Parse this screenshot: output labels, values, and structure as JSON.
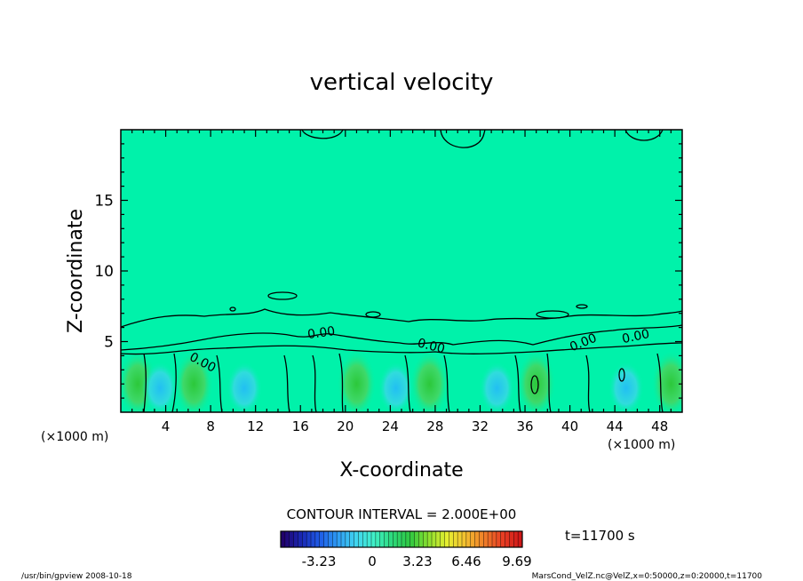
{
  "chart_data": {
    "type": "heatmap",
    "title": "vertical velocity",
    "xlabel": "X-coordinate",
    "ylabel": "Z-coordinate",
    "x_unit_left": "(×1000 m)",
    "x_unit_right": "(×1000 m)",
    "xlim": [
      0,
      50
    ],
    "ylim": [
      0,
      20
    ],
    "x_ticks": [
      "4",
      "8",
      "12",
      "16",
      "20",
      "24",
      "28",
      "32",
      "36",
      "40",
      "44",
      "48"
    ],
    "y_ticks": [
      "5",
      "10",
      "15"
    ],
    "contour_labels": [
      "0.00",
      "0.00",
      "0.00",
      "0.00",
      "0.00"
    ],
    "contour_interval_text": "CONTOUR INTERVAL = 2.000E+00",
    "time_text": "t=11700 s",
    "colorbar": {
      "ticks": [
        "-3.23",
        "0",
        "3.23",
        "6.46",
        "9.69"
      ],
      "colors": [
        "#20006a",
        "#1a28b4",
        "#1e5ae6",
        "#2e9cf4",
        "#40d4f0",
        "#40f0c8",
        "#2cd87a",
        "#30c840",
        "#8ee030",
        "#e6ee30",
        "#f4c030",
        "#f08028",
        "#e84024",
        "#d01818"
      ]
    },
    "background_value_color": "#00f2aa",
    "warm_columns_x_km": [
      1.5,
      6.5,
      21,
      27.5,
      37,
      49
    ],
    "cool_columns_x_km": [
      3.5,
      11,
      24.5,
      33.5,
      45
    ]
  },
  "footer": {
    "left": "/usr/bin/gpview   2008-10-18",
    "right": "MarsCond_VelZ.nc@VelZ,x=0:50000,z=0:20000,t=11700"
  }
}
